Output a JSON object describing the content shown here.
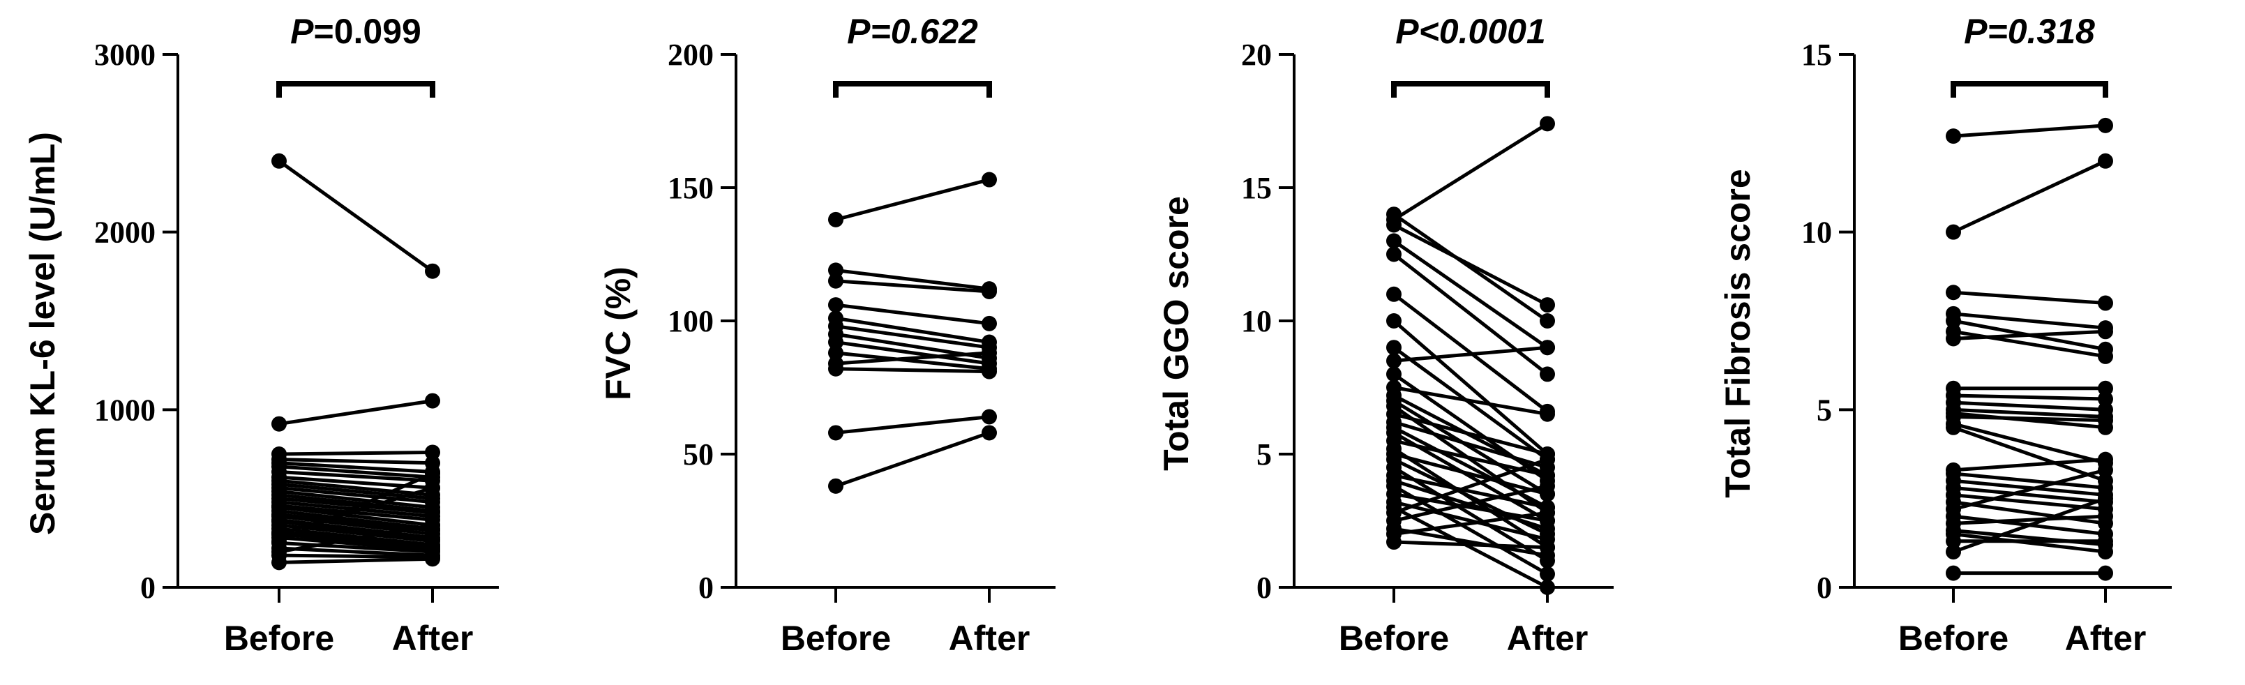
{
  "chart_data": [
    {
      "type": "line",
      "categories": [
        "Before",
        "After"
      ],
      "ylabel": "Serum KL-6 level (U/mL)",
      "ylim": [
        0,
        3000
      ],
      "yticks": [
        0,
        1000,
        2000,
        3000
      ],
      "ytick_labels": [
        "0",
        "1000",
        "2000",
        "3000"
      ],
      "p_label": "P",
      "p_value": "=0.099",
      "p_italic_all": false,
      "pairs": [
        [
          2400,
          1780
        ],
        [
          920,
          1050
        ],
        [
          750,
          760
        ],
        [
          720,
          700
        ],
        [
          700,
          650
        ],
        [
          680,
          620
        ],
        [
          650,
          600
        ],
        [
          620,
          560
        ],
        [
          600,
          520
        ],
        [
          580,
          500
        ],
        [
          560,
          480
        ],
        [
          540,
          450
        ],
        [
          520,
          430
        ],
        [
          500,
          420
        ],
        [
          480,
          400
        ],
        [
          460,
          380
        ],
        [
          450,
          350
        ],
        [
          430,
          330
        ],
        [
          410,
          320
        ],
        [
          400,
          300
        ],
        [
          380,
          280
        ],
        [
          370,
          270
        ],
        [
          350,
          260
        ],
        [
          330,
          240
        ],
        [
          310,
          230
        ],
        [
          300,
          220
        ],
        [
          280,
          210
        ],
        [
          250,
          200
        ],
        [
          220,
          180
        ],
        [
          180,
          170
        ],
        [
          140,
          160
        ],
        [
          260,
          640
        ],
        [
          300,
          560
        ],
        [
          200,
          350
        ]
      ]
    },
    {
      "type": "line",
      "categories": [
        "Before",
        "After"
      ],
      "ylabel": "FVC (%)",
      "ylim": [
        0,
        200
      ],
      "yticks": [
        0,
        50,
        100,
        150,
        200
      ],
      "ytick_labels": [
        "0",
        "50",
        "100",
        "150",
        "200"
      ],
      "p_label": "P",
      "p_value": "=0.622",
      "p_italic_all": true,
      "pairs": [
        [
          138,
          153
        ],
        [
          119,
          112
        ],
        [
          115,
          111
        ],
        [
          106,
          99
        ],
        [
          101,
          92
        ],
        [
          98,
          90
        ],
        [
          95,
          86
        ],
        [
          92,
          84
        ],
        [
          88,
          82
        ],
        [
          84,
          88
        ],
        [
          82,
          81
        ],
        [
          58,
          64
        ],
        [
          38,
          58
        ]
      ]
    },
    {
      "type": "line",
      "categories": [
        "Before",
        "After"
      ],
      "ylabel": "Total GGO score",
      "ylim": [
        0,
        20
      ],
      "yticks": [
        0,
        5,
        10,
        15,
        20
      ],
      "ytick_labels": [
        "0",
        "5",
        "10",
        "15",
        "20"
      ],
      "p_label": "P",
      "p_value": "<0.0001",
      "p_italic_all": true,
      "pairs": [
        [
          13.8,
          17.4
        ],
        [
          14.0,
          10.0
        ],
        [
          13.6,
          10.6
        ],
        [
          13.0,
          9.0
        ],
        [
          12.5,
          8.0
        ],
        [
          11.0,
          6.6
        ],
        [
          10.0,
          5.0
        ],
        [
          9.0,
          4.8
        ],
        [
          8.5,
          9.0
        ],
        [
          8.0,
          4.0
        ],
        [
          7.5,
          6.5
        ],
        [
          7.2,
          4.2
        ],
        [
          7.0,
          3.5
        ],
        [
          6.8,
          2.8
        ],
        [
          6.5,
          5.0
        ],
        [
          6.2,
          4.5
        ],
        [
          6.0,
          3.0
        ],
        [
          5.8,
          2.5
        ],
        [
          5.5,
          4.2
        ],
        [
          5.2,
          1.5
        ],
        [
          5.0,
          3.5
        ],
        [
          4.8,
          2.0
        ],
        [
          4.5,
          1.0
        ],
        [
          4.2,
          3.0
        ],
        [
          4.0,
          2.2
        ],
        [
          3.8,
          0.5
        ],
        [
          3.5,
          2.5
        ],
        [
          3.2,
          1.8
        ],
        [
          3.0,
          0.0
        ],
        [
          2.8,
          4.8
        ],
        [
          2.5,
          3.8
        ],
        [
          2.2,
          1.2
        ],
        [
          2.0,
          2.8
        ],
        [
          1.7,
          1.5
        ]
      ]
    },
    {
      "type": "line",
      "categories": [
        "Before",
        "After"
      ],
      "ylabel": "Total Fibrosis score",
      "ylim": [
        0,
        15
      ],
      "yticks": [
        0,
        5,
        10,
        15
      ],
      "ytick_labels": [
        "0",
        "5",
        "10",
        "15"
      ],
      "p_label": "P",
      "p_value": "=0.318",
      "p_italic_all": true,
      "pairs": [
        [
          12.7,
          13.0
        ],
        [
          10.0,
          12.0
        ],
        [
          8.3,
          8.0
        ],
        [
          7.7,
          7.3
        ],
        [
          7.5,
          6.7
        ],
        [
          7.2,
          6.5
        ],
        [
          7.0,
          7.2
        ],
        [
          5.6,
          5.6
        ],
        [
          5.4,
          5.3
        ],
        [
          5.2,
          5.0
        ],
        [
          5.0,
          4.8
        ],
        [
          4.9,
          4.5
        ],
        [
          4.8,
          4.7
        ],
        [
          4.6,
          3.5
        ],
        [
          4.5,
          3.0
        ],
        [
          3.3,
          3.6
        ],
        [
          3.2,
          2.8
        ],
        [
          3.0,
          2.6
        ],
        [
          2.8,
          2.4
        ],
        [
          2.6,
          2.2
        ],
        [
          2.4,
          1.8
        ],
        [
          2.2,
          3.3
        ],
        [
          2.0,
          1.5
        ],
        [
          1.8,
          2.0
        ],
        [
          1.6,
          1.2
        ],
        [
          1.5,
          1.0
        ],
        [
          1.3,
          1.3
        ],
        [
          1.0,
          2.5
        ],
        [
          0.4,
          0.4
        ]
      ]
    }
  ]
}
